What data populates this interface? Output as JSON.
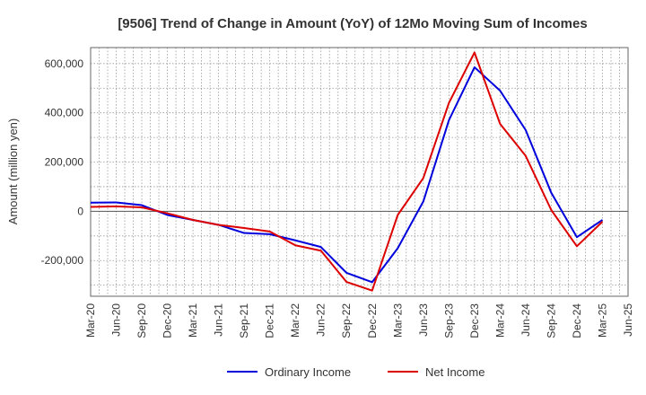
{
  "chart_data": {
    "type": "line",
    "title": "[9506]  Trend of Change in Amount (YoY) of 12Mo Moving Sum of Incomes",
    "xlabel": "",
    "ylabel": "Amount (million yen)",
    "ylim": [
      -345000,
      665000
    ],
    "yticks": [
      -200000,
      0,
      200000,
      400000,
      600000
    ],
    "ytick_labels": [
      "-200,000",
      "0",
      "200,000",
      "400,000",
      "600,000"
    ],
    "grid": true,
    "legend_position": "bottom-center",
    "categories": [
      "Mar-20",
      "Jun-20",
      "Sep-20",
      "Dec-20",
      "Mar-21",
      "Jun-21",
      "Sep-21",
      "Dec-21",
      "Mar-22",
      "Jun-22",
      "Sep-22",
      "Dec-22",
      "Mar-23",
      "Jun-23",
      "Sep-23",
      "Dec-23",
      "Mar-24",
      "Jun-24",
      "Sep-24",
      "Dec-24",
      "Mar-25",
      "Jun-25"
    ],
    "series": [
      {
        "name": "Ordinary Income",
        "color": "#0000dd",
        "values": [
          35000,
          36000,
          25000,
          -15000,
          -35000,
          -55000,
          -88000,
          -93000,
          -118000,
          -145000,
          -250000,
          -288000,
          -150000,
          40000,
          370000,
          585000,
          490000,
          330000,
          75000,
          -105000,
          -35000,
          null
        ]
      },
      {
        "name": "Net Income",
        "color": "#dd0000",
        "values": [
          18000,
          20000,
          16000,
          -8000,
          -35000,
          -55000,
          -68000,
          -82000,
          -138000,
          -160000,
          -287000,
          -322000,
          -15000,
          135000,
          440000,
          645000,
          355000,
          225000,
          5000,
          -142000,
          -42000,
          null
        ]
      }
    ]
  }
}
